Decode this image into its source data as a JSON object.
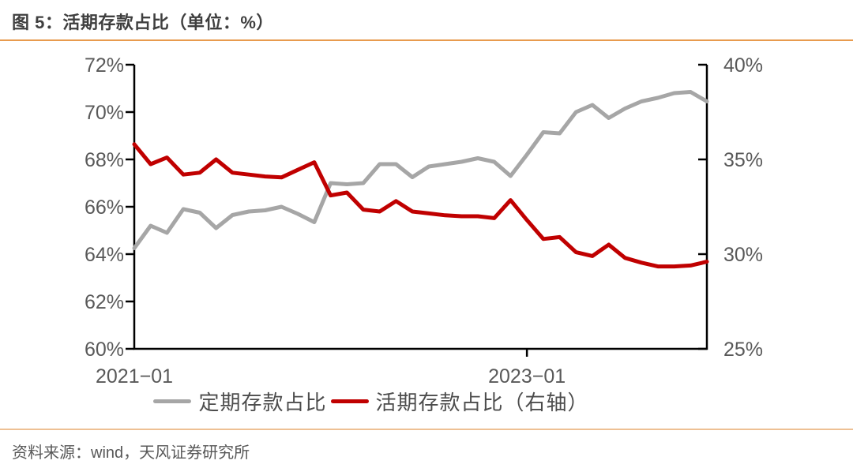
{
  "page": {
    "source_note": "资料来源：wind，天风证券研究所"
  },
  "colors": {
    "accent_rule_top": "#e89b4e",
    "accent_rule_bottom": "#eec094",
    "series_gray": "#a6a6a6",
    "series_red": "#c00000",
    "axis_line": "#000000",
    "tick_label": "#595959"
  },
  "chart_data": {
    "type": "line",
    "title": "图 5：活期存款占比（单位：%）",
    "grid": false,
    "legend_position": "bottom",
    "x": [
      "2021-01",
      "2021-02",
      "2021-03",
      "2021-04",
      "2021-05",
      "2021-06",
      "2021-07",
      "2021-08",
      "2021-09",
      "2021-10",
      "2021-11",
      "2021-12",
      "2022-01",
      "2022-02",
      "2022-03",
      "2022-04",
      "2022-05",
      "2022-06",
      "2022-07",
      "2022-08",
      "2022-09",
      "2022-10",
      "2022-11",
      "2022-12",
      "2023-01",
      "2023-02",
      "2023-03",
      "2023-04",
      "2023-05",
      "2023-06",
      "2023-07",
      "2023-08",
      "2023-09",
      "2023-10",
      "2023-11",
      "2023-12"
    ],
    "x_tick_labels": [
      {
        "index": 0,
        "label": "2021−01",
        "tick": false
      },
      {
        "index": 24,
        "label": "2023−01",
        "tick": true
      }
    ],
    "left_axis": {
      "min": 60,
      "max": 72,
      "ticks": [
        {
          "value": 72,
          "label": "72%"
        },
        {
          "value": 70,
          "label": "70%"
        },
        {
          "value": 68,
          "label": "68%"
        },
        {
          "value": 66,
          "label": "66%"
        },
        {
          "value": 64,
          "label": "64%"
        },
        {
          "value": 62,
          "label": "62%"
        },
        {
          "value": 60,
          "label": "60%"
        }
      ]
    },
    "right_axis": {
      "min": 25,
      "max": 40,
      "ticks": [
        {
          "value": 40,
          "label": "40%"
        },
        {
          "value": 35,
          "label": "35%"
        },
        {
          "value": 30,
          "label": "30%"
        },
        {
          "value": 25,
          "label": "25%"
        }
      ]
    },
    "series": [
      {
        "name": "定期存款占比",
        "axis": "left",
        "color_key": "series_gray",
        "data_name": "time-deposit-ratio-line",
        "values": [
          64.25,
          65.2,
          64.9,
          65.9,
          65.75,
          65.1,
          65.65,
          65.8,
          65.85,
          66.0,
          65.7,
          65.35,
          67.0,
          66.95,
          67.0,
          67.8,
          67.8,
          67.25,
          67.7,
          67.8,
          67.9,
          68.05,
          67.9,
          67.3,
          68.2,
          69.15,
          69.1,
          70.0,
          70.3,
          69.75,
          70.15,
          70.45,
          70.6,
          70.8,
          70.85,
          70.45
        ]
      },
      {
        "name": "活期存款占比（右轴）",
        "axis": "right",
        "color_key": "series_red",
        "data_name": "demand-deposit-ratio-line",
        "values": [
          35.8,
          34.75,
          35.1,
          34.2,
          34.3,
          35.0,
          34.3,
          34.2,
          34.1,
          34.05,
          34.45,
          34.85,
          33.1,
          33.25,
          32.35,
          32.25,
          32.8,
          32.25,
          32.15,
          32.05,
          32.0,
          32.0,
          31.9,
          32.85,
          31.8,
          30.8,
          30.9,
          30.1,
          29.9,
          30.5,
          29.8,
          29.55,
          29.35,
          29.35,
          29.4,
          29.6
        ]
      }
    ]
  }
}
